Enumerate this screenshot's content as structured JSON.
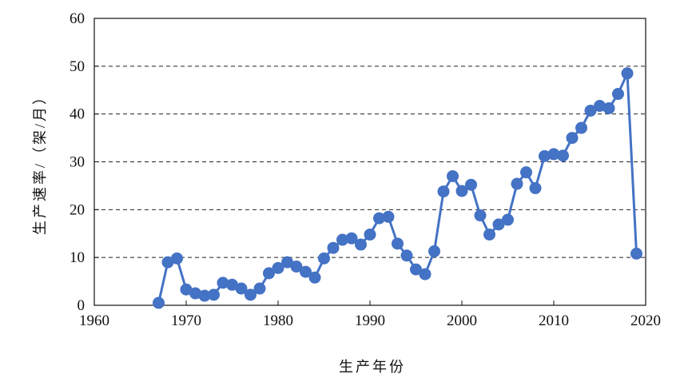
{
  "chart_data": {
    "type": "line",
    "title": "",
    "xlabel": "生产年份",
    "ylabel": "生产速率/（架/月）",
    "xlim": [
      1960,
      2020
    ],
    "ylim": [
      0,
      60
    ],
    "xticks": [
      1960,
      1970,
      1980,
      1990,
      2000,
      2010,
      2020
    ],
    "yticks": [
      0,
      10,
      20,
      30,
      40,
      50,
      60
    ],
    "grid": "horizontal dashed",
    "legend": "none",
    "series": [
      {
        "color": "#4472c4",
        "marker": "circle",
        "x": [
          1967,
          1968,
          1969,
          1970,
          1971,
          1972,
          1973,
          1974,
          1975,
          1976,
          1977,
          1978,
          1979,
          1980,
          1981,
          1982,
          1983,
          1984,
          1985,
          1986,
          1987,
          1988,
          1989,
          1990,
          1991,
          1992,
          1993,
          1994,
          1995,
          1996,
          1997,
          1998,
          1999,
          2000,
          2001,
          2002,
          2003,
          2004,
          2005,
          2006,
          2007,
          2008,
          2009,
          2010,
          2011,
          2012,
          2013,
          2014,
          2015,
          2016,
          2017,
          2018,
          2019
        ],
        "y": [
          0.5,
          9.0,
          9.8,
          3.3,
          2.5,
          2.0,
          2.2,
          4.7,
          4.3,
          3.5,
          2.2,
          3.5,
          6.7,
          7.8,
          9.0,
          8.1,
          7.0,
          5.8,
          9.8,
          12.0,
          13.7,
          14.0,
          12.7,
          14.8,
          18.2,
          18.5,
          12.9,
          10.4,
          7.5,
          6.5,
          11.3,
          23.8,
          27.0,
          23.9,
          25.2,
          18.8,
          14.8,
          16.9,
          17.9,
          25.4,
          27.8,
          24.5,
          31.2,
          31.6,
          31.3,
          35.0,
          37.1,
          40.7,
          41.7,
          41.2,
          44.2,
          48.5,
          10.8
        ]
      }
    ]
  }
}
